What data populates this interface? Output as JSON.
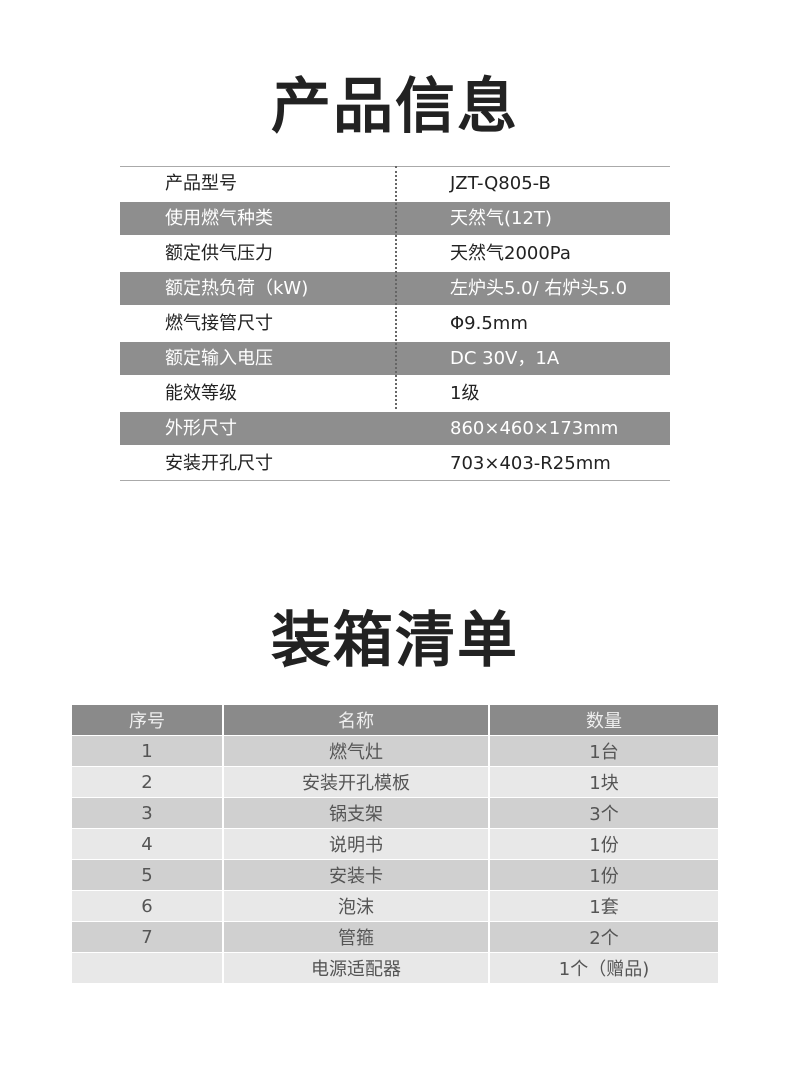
{
  "spec_title": "产品信息",
  "spec": [
    {
      "k": "产品型号",
      "v": "JZT-Q805-B"
    },
    {
      "k": "使用燃气种类",
      "v": "天然气(12T)"
    },
    {
      "k": "额定供气压力",
      "v": "天然气2000Pa"
    },
    {
      "k": "额定热负荷（kW)",
      "v": "左炉头5.0/ 右炉头5.0"
    },
    {
      "k": "燃气接管尺寸",
      "v": "Φ9.5mm"
    },
    {
      "k": "额定输入电压",
      "v": "DC 30V，1A"
    },
    {
      "k": "能效等级",
      "v": "1级"
    },
    {
      "k": "外形尺寸",
      "v": "860×460×173mm"
    },
    {
      "k": "安装开孔尺寸",
      "v": "703×403-R25mm"
    }
  ],
  "pack_title": "装箱清单",
  "pack_headers": [
    "序号",
    "名称",
    "数量"
  ],
  "pack": [
    [
      "1",
      "燃气灶",
      "1台"
    ],
    [
      "2",
      "安装开孔模板",
      "1块"
    ],
    [
      "3",
      "锅支架",
      "3个"
    ],
    [
      "4",
      "说明书",
      "1份"
    ],
    [
      "5",
      "安装卡",
      "1份"
    ],
    [
      "6",
      "泡沫",
      "1套"
    ],
    [
      "7",
      "管箍",
      "2个"
    ],
    [
      "",
      "电源适配器",
      "1个（赠品)"
    ]
  ]
}
